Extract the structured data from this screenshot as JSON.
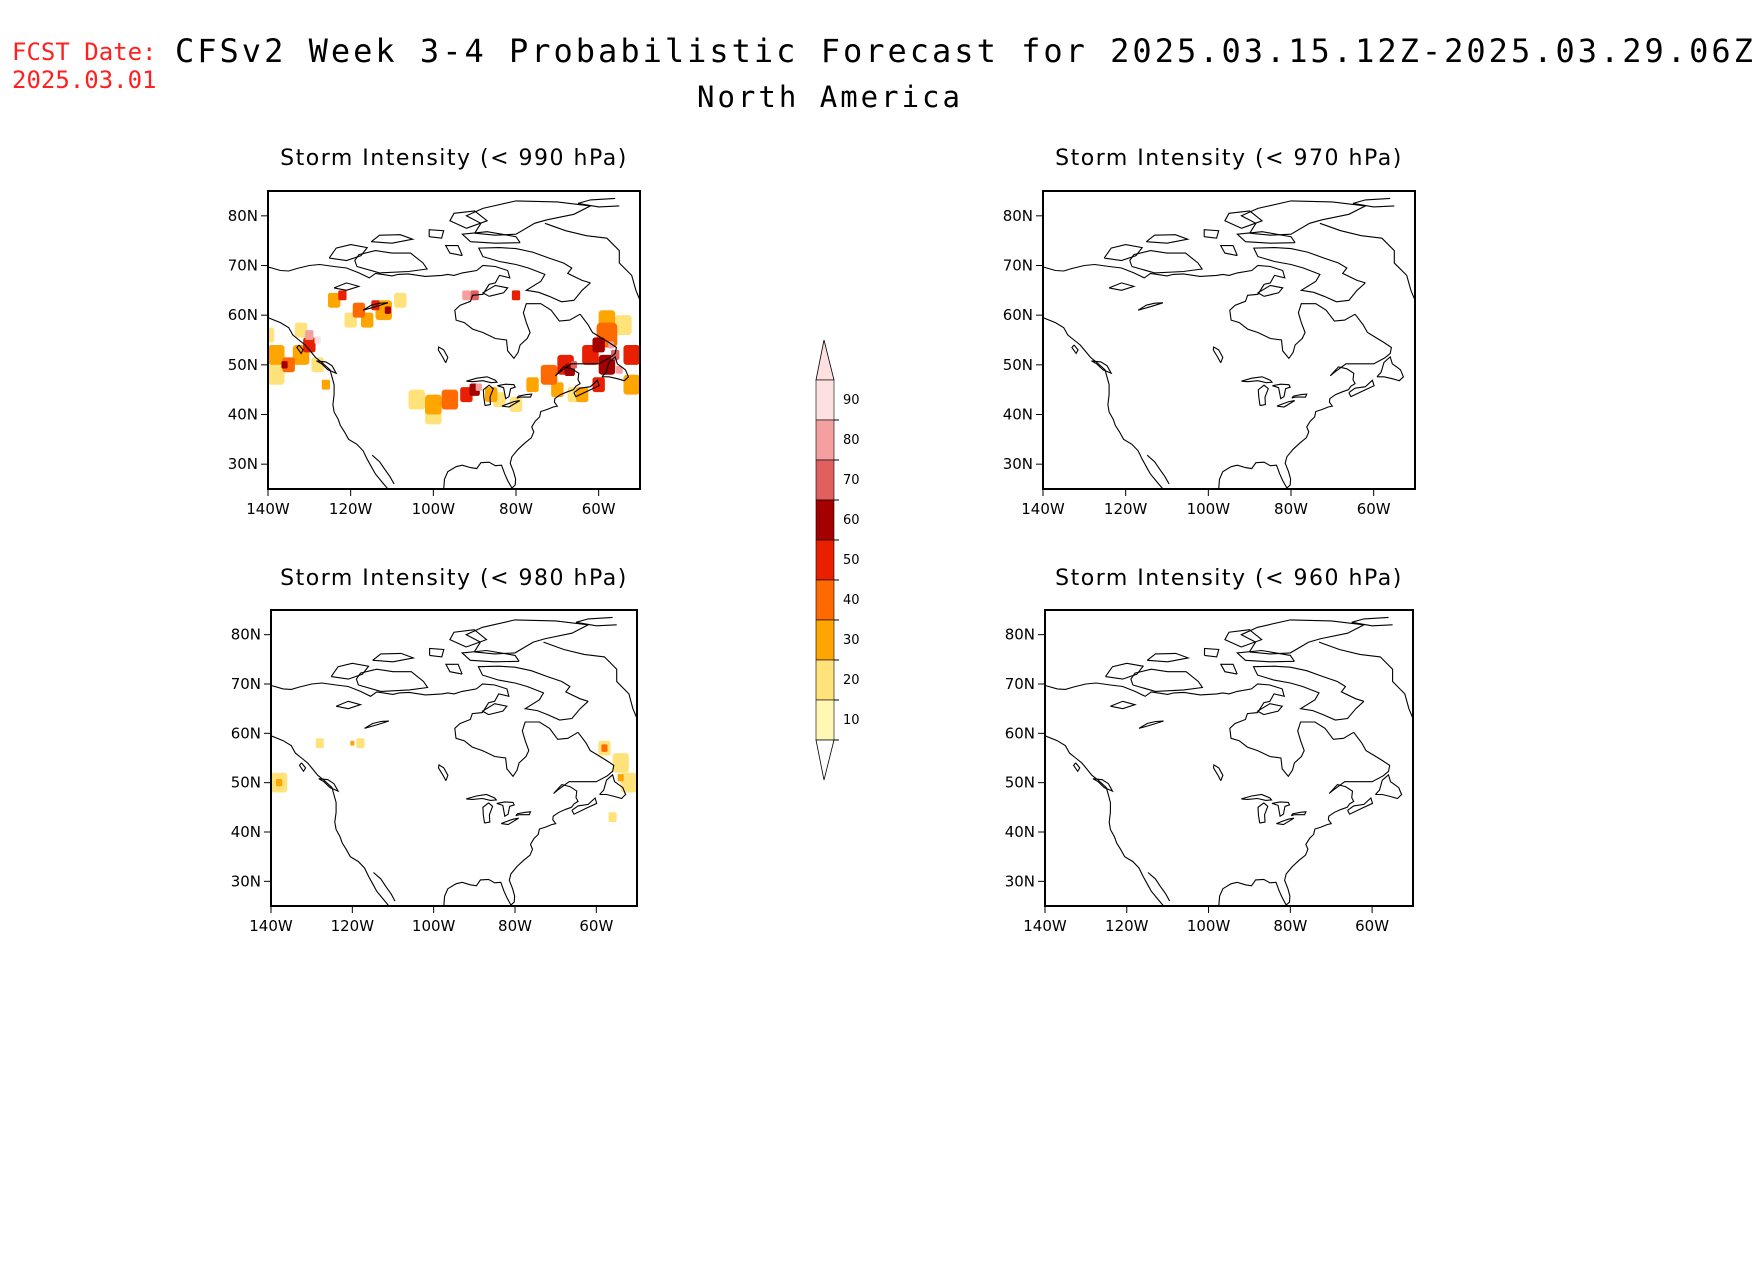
{
  "header": {
    "fcst_label": "FCST Date:",
    "fcst_date": "2025.03.01",
    "title": "CFSv2 Week 3-4 Probabilistic Forecast for 2025.03.15.12Z-2025.03.29.06Z",
    "subtitle": "North America"
  },
  "map": {
    "lat_ticks": [
      "80N",
      "70N",
      "60N",
      "50N",
      "40N",
      "30N"
    ],
    "lon_ticks": [
      "140W",
      "120W",
      "100W",
      "80W",
      "60W"
    ],
    "lat_values": [
      80,
      70,
      60,
      50,
      40,
      30
    ],
    "lon_values": [
      -140,
      -120,
      -100,
      -80,
      -60
    ],
    "extent": {
      "lon_min": -140,
      "lon_max": -50,
      "lat_min": 25,
      "lat_max": 85
    }
  },
  "panels": [
    {
      "id": "p990",
      "title": "Storm Intensity (< 990 hPa)"
    },
    {
      "id": "p970",
      "title": "Storm Intensity (< 970 hPa)"
    },
    {
      "id": "p980",
      "title": "Storm Intensity (< 980 hPa)"
    },
    {
      "id": "p960",
      "title": "Storm Intensity (< 960 hPa)"
    }
  ],
  "colorbar": {
    "levels": [
      "10",
      "20",
      "30",
      "40",
      "50",
      "60",
      "70",
      "80",
      "90"
    ],
    "colors": [
      "#fff7b3",
      "#ffe27a",
      "#ffa500",
      "#ff6a00",
      "#e82000",
      "#a50000",
      "#e06060",
      "#f4a0a0",
      "#ffe0e0"
    ]
  }
}
